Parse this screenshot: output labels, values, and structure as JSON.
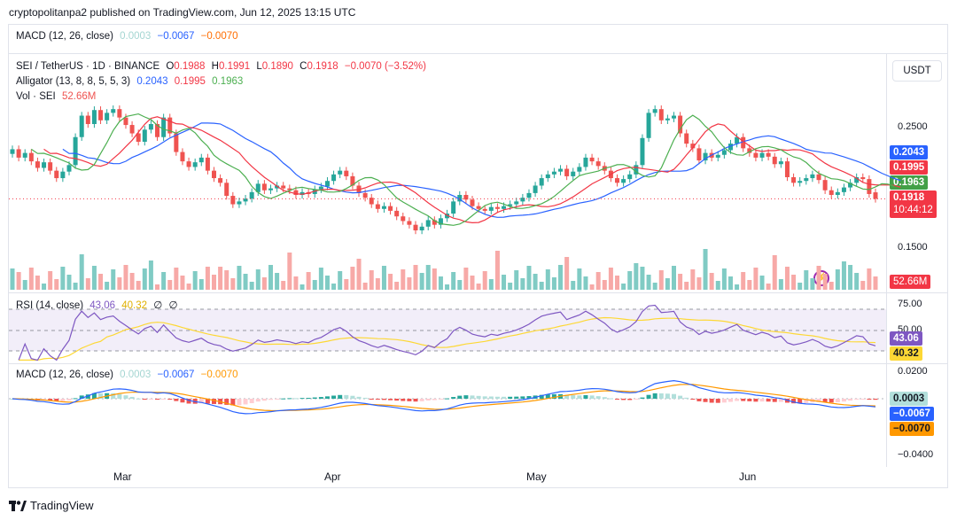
{
  "header": {
    "published": "cryptopolitanpa2 published on TradingView.com, Jun 12, 2025 13:15 UTC"
  },
  "top_macd": {
    "label": "MACD (12, 26, close)",
    "v1": "0.0003",
    "v2": "−0.0067",
    "v3": "−0.0070"
  },
  "main": {
    "symbol": "SEI / TetherUS · 1D · BINANCE",
    "o": "O",
    "o_val": "0.1988",
    "h": "H",
    "h_val": "0.1991",
    "l": "L",
    "l_val": "0.1890",
    "c": "C",
    "c_val": "0.1918",
    "change": "−0.0070 (−3.52%)",
    "alligator_label": "Alligator (13, 8, 8, 5, 5, 3)",
    "alligator_jaw": "0.2043",
    "alligator_teeth": "0.1995",
    "alligator_lips": "0.1963",
    "vol_label": "Vol · SEI",
    "vol_val": "52.66M",
    "currency": "USDT",
    "ticks": [
      "0.2500",
      "0.1500"
    ],
    "tag_jaw": "0.2043",
    "tag_teeth": "0.1995",
    "tag_lips": "0.1963",
    "tag_price": "0.1918",
    "tag_countdown": "10:44:12",
    "tag_vol": "52.66M"
  },
  "rsi": {
    "label": "RSI (14, close)",
    "v1": "43.06",
    "v2": "40.32",
    "v3": "∅",
    "v4": "∅",
    "ticks": [
      "75.00",
      "50.00"
    ],
    "tag_rsi": "43.06",
    "tag_ma": "40.32"
  },
  "macd": {
    "label": "MACD (12, 26, close)",
    "v1": "0.0003",
    "v2": "−0.0067",
    "v3": "−0.0070",
    "ticks": [
      "0.0200",
      "−0.0400"
    ],
    "tag_hist": "0.0003",
    "tag_macd": "−0.0067",
    "tag_signal": "−0.0070"
  },
  "x_axis": [
    "Mar",
    "Apr",
    "May",
    "Jun"
  ],
  "footer": {
    "brand": "TradingView"
  },
  "colors": {
    "up": "#26a69a",
    "down": "#ef5350",
    "jaw": "#2962ff",
    "teeth": "#f23645",
    "lips": "#4caf50",
    "rsi": "#7e57c2",
    "rsi_ma": "#fdd835",
    "macd": "#2962ff",
    "signal": "#ff9800"
  },
  "chart_data": {
    "type": "candlestick",
    "title": "SEI / TetherUS · 1D · BINANCE",
    "ylim": [
      0.12,
      0.31
    ],
    "ohlc_last": {
      "open": 0.1988,
      "high": 0.1991,
      "low": 0.189,
      "close": 0.1918
    },
    "closes": [
      0.245,
      0.236,
      0.241,
      0.232,
      0.225,
      0.231,
      0.222,
      0.214,
      0.221,
      0.228,
      0.258,
      0.281,
      0.272,
      0.287,
      0.276,
      0.284,
      0.288,
      0.279,
      0.271,
      0.262,
      0.253,
      0.266,
      0.272,
      0.258,
      0.279,
      0.262,
      0.242,
      0.232,
      0.226,
      0.231,
      0.236,
      0.222,
      0.214,
      0.209,
      0.195,
      0.186,
      0.189,
      0.192,
      0.199,
      0.208,
      0.201,
      0.203,
      0.206,
      0.203,
      0.201,
      0.196,
      0.199,
      0.197,
      0.202,
      0.205,
      0.211,
      0.218,
      0.222,
      0.216,
      0.206,
      0.198,
      0.193,
      0.186,
      0.181,
      0.184,
      0.179,
      0.173,
      0.168,
      0.164,
      0.158,
      0.162,
      0.169,
      0.164,
      0.171,
      0.176,
      0.189,
      0.196,
      0.191,
      0.184,
      0.181,
      0.179,
      0.183,
      0.181,
      0.184,
      0.186,
      0.189,
      0.193,
      0.198,
      0.206,
      0.214,
      0.218,
      0.221,
      0.224,
      0.216,
      0.221,
      0.226,
      0.236,
      0.232,
      0.227,
      0.222,
      0.214,
      0.209,
      0.213,
      0.218,
      0.228,
      0.257,
      0.284,
      0.288,
      0.276,
      0.278,
      0.281,
      0.262,
      0.251,
      0.246,
      0.233,
      0.241,
      0.236,
      0.239,
      0.244,
      0.251,
      0.258,
      0.246,
      0.241,
      0.236,
      0.241,
      0.237,
      0.229,
      0.232,
      0.215,
      0.209,
      0.211,
      0.214,
      0.218,
      0.212,
      0.201,
      0.196,
      0.199,
      0.204,
      0.209,
      0.215,
      0.213,
      0.197,
      0.1918
    ],
    "opens": [
      0.24,
      0.245,
      0.236,
      0.241,
      0.232,
      0.225,
      0.231,
      0.222,
      0.214,
      0.221,
      0.228,
      0.258,
      0.281,
      0.272,
      0.287,
      0.276,
      0.284,
      0.288,
      0.279,
      0.271,
      0.262,
      0.253,
      0.266,
      0.272,
      0.258,
      0.279,
      0.262,
      0.242,
      0.232,
      0.226,
      0.231,
      0.236,
      0.222,
      0.214,
      0.209,
      0.195,
      0.186,
      0.189,
      0.192,
      0.199,
      0.208,
      0.201,
      0.203,
      0.206,
      0.203,
      0.201,
      0.196,
      0.199,
      0.197,
      0.202,
      0.205,
      0.211,
      0.218,
      0.222,
      0.216,
      0.206,
      0.198,
      0.193,
      0.186,
      0.181,
      0.184,
      0.179,
      0.173,
      0.168,
      0.164,
      0.158,
      0.162,
      0.169,
      0.164,
      0.171,
      0.176,
      0.189,
      0.196,
      0.191,
      0.184,
      0.181,
      0.179,
      0.183,
      0.181,
      0.184,
      0.186,
      0.189,
      0.193,
      0.198,
      0.206,
      0.214,
      0.218,
      0.221,
      0.224,
      0.216,
      0.221,
      0.226,
      0.236,
      0.232,
      0.227,
      0.222,
      0.214,
      0.209,
      0.213,
      0.218,
      0.228,
      0.257,
      0.284,
      0.288,
      0.276,
      0.278,
      0.281,
      0.262,
      0.251,
      0.246,
      0.233,
      0.241,
      0.236,
      0.239,
      0.244,
      0.251,
      0.258,
      0.246,
      0.241,
      0.236,
      0.241,
      0.237,
      0.229,
      0.232,
      0.215,
      0.209,
      0.211,
      0.214,
      0.218,
      0.212,
      0.201,
      0.196,
      0.199,
      0.204,
      0.209,
      0.215,
      0.213,
      0.1988
    ],
    "series": [
      {
        "name": "Alligator Jaw",
        "values_from": "closes",
        "period": 13,
        "last": 0.2043
      },
      {
        "name": "Alligator Teeth",
        "values_from": "closes",
        "period": 8,
        "last": 0.1995
      },
      {
        "name": "Alligator Lips",
        "values_from": "closes",
        "period": 5,
        "last": 0.1963
      }
    ],
    "volume_last": "52.66M",
    "rsi_last": 43.06,
    "rsi_ma_last": 40.32,
    "macd_last": -0.0067,
    "signal_last": -0.007,
    "hist_last": 0.0003,
    "x_labels": [
      "Mar",
      "Apr",
      "May",
      "Jun"
    ]
  }
}
